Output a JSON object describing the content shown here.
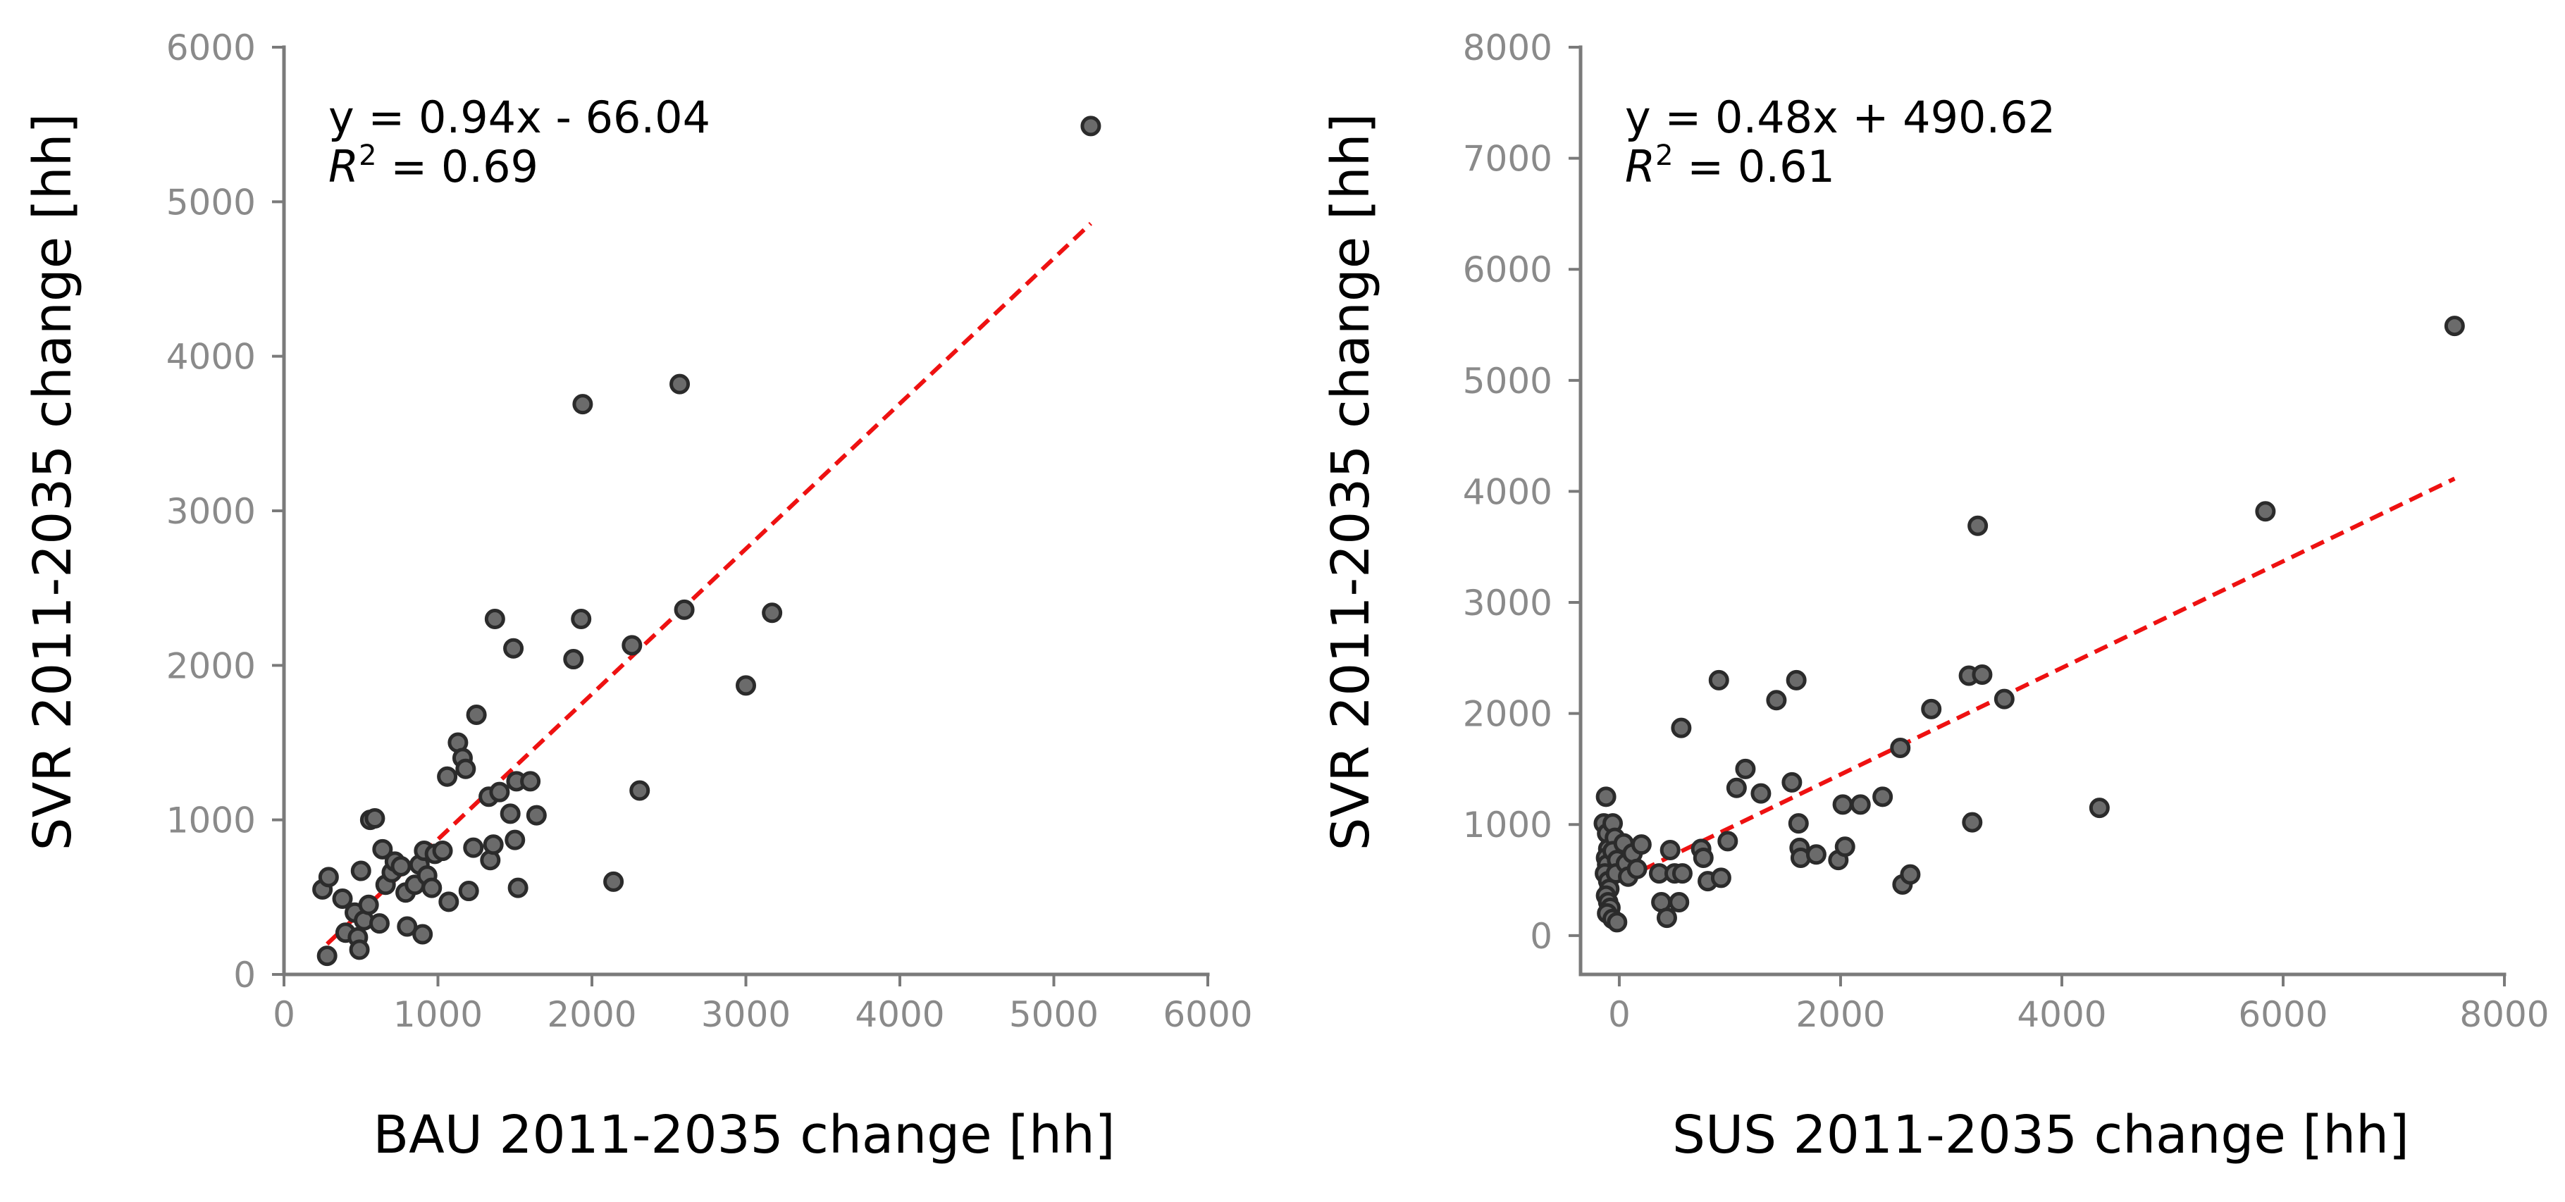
{
  "colors": {
    "axis": "#7a7a7a",
    "tick_label": "#8a8a8a",
    "point_fill": "#6b6b6b",
    "point_stroke": "#2b2b2b",
    "fit_line": "#ee1111",
    "text": "#000000"
  },
  "chart_data": [
    {
      "type": "scatter",
      "title": "",
      "xlabel": "BAU 2011-2035 change [hh]",
      "ylabel": "SVR 2011-2035 change [hh]",
      "xlim": [
        0,
        6000
      ],
      "ylim": [
        0,
        6000
      ],
      "xticks": [
        0,
        1000,
        2000,
        3000,
        4000,
        5000,
        6000
      ],
      "yticks": [
        0,
        1000,
        2000,
        3000,
        4000,
        5000,
        6000
      ],
      "xtick_labels": [
        "0",
        "1000",
        "2000",
        "3000",
        "4000",
        "5000",
        "6000"
      ],
      "ytick_labels": [
        "0",
        "1000",
        "2000",
        "3000",
        "4000",
        "5000",
        "6000"
      ],
      "equation_text": "y = 0.94x - 66.04",
      "r2_symbol": "R",
      "r2_exponent": "2",
      "r2_value_text": " = 0.69",
      "fit": {
        "slope": 0.94,
        "intercept": -66.04,
        "x_range": [
          280,
          5240
        ]
      },
      "points": [
        [
          280,
          120
        ],
        [
          250,
          550
        ],
        [
          290,
          630
        ],
        [
          380,
          490
        ],
        [
          400,
          270
        ],
        [
          460,
          400
        ],
        [
          480,
          240
        ],
        [
          490,
          160
        ],
        [
          500,
          670
        ],
        [
          520,
          350
        ],
        [
          550,
          450
        ],
        [
          560,
          1000
        ],
        [
          590,
          1010
        ],
        [
          620,
          330
        ],
        [
          640,
          810
        ],
        [
          660,
          580
        ],
        [
          700,
          660
        ],
        [
          720,
          730
        ],
        [
          760,
          700
        ],
        [
          790,
          530
        ],
        [
          800,
          310
        ],
        [
          850,
          580
        ],
        [
          880,
          710
        ],
        [
          900,
          260
        ],
        [
          910,
          800
        ],
        [
          930,
          640
        ],
        [
          960,
          560
        ],
        [
          980,
          780
        ],
        [
          1030,
          800
        ],
        [
          1060,
          1280
        ],
        [
          1070,
          470
        ],
        [
          1130,
          1500
        ],
        [
          1160,
          1400
        ],
        [
          1180,
          1330
        ],
        [
          1200,
          540
        ],
        [
          1230,
          820
        ],
        [
          1250,
          1680
        ],
        [
          1330,
          1150
        ],
        [
          1340,
          740
        ],
        [
          1360,
          840
        ],
        [
          1370,
          2300
        ],
        [
          1400,
          1180
        ],
        [
          1470,
          1040
        ],
        [
          1490,
          2110
        ],
        [
          1500,
          870
        ],
        [
          1510,
          1250
        ],
        [
          1520,
          560
        ],
        [
          1600,
          1250
        ],
        [
          1640,
          1030
        ],
        [
          1880,
          2040
        ],
        [
          1930,
          2300
        ],
        [
          1940,
          3690
        ],
        [
          2140,
          600
        ],
        [
          2260,
          2130
        ],
        [
          2310,
          1190
        ],
        [
          2570,
          3820
        ],
        [
          2600,
          2360
        ],
        [
          3000,
          1870
        ],
        [
          3170,
          2340
        ],
        [
          5240,
          5490
        ]
      ]
    },
    {
      "type": "scatter",
      "title": "",
      "xlabel": "SUS 2011-2035 change [hh]",
      "ylabel": "SVR 2011-2035 change [hh]",
      "xlim": [
        -350,
        8000
      ],
      "ylim": [
        -350,
        8000
      ],
      "xticks": [
        0,
        2000,
        4000,
        6000,
        8000
      ],
      "yticks": [
        0,
        1000,
        2000,
        3000,
        4000,
        5000,
        6000,
        7000,
        8000
      ],
      "xtick_labels": [
        "0",
        "2000",
        "4000",
        "6000",
        "8000"
      ],
      "ytick_labels": [
        "0",
        "1000",
        "2000",
        "3000",
        "4000",
        "5000",
        "6000",
        "7000",
        "8000"
      ],
      "equation_text": "y = 0.48x + 490.62",
      "r2_symbol": "R",
      "r2_exponent": "2",
      "r2_value_text": " = 0.61",
      "fit": {
        "slope": 0.48,
        "intercept": 490.62,
        "x_range": [
          -150,
          7550
        ]
      },
      "points": [
        [
          -140,
          1010
        ],
        [
          -120,
          1250
        ],
        [
          -110,
          920
        ],
        [
          -100,
          780
        ],
        [
          -120,
          700
        ],
        [
          -110,
          640
        ],
        [
          -130,
          560
        ],
        [
          -100,
          490
        ],
        [
          -90,
          420
        ],
        [
          -120,
          360
        ],
        [
          -100,
          300
        ],
        [
          -80,
          250
        ],
        [
          -110,
          200
        ],
        [
          -60,
          1010
        ],
        [
          -40,
          880
        ],
        [
          -60,
          760
        ],
        [
          -20,
          680
        ],
        [
          -30,
          560
        ],
        [
          -60,
          150
        ],
        [
          -20,
          120
        ],
        [
          40,
          830
        ],
        [
          60,
          650
        ],
        [
          80,
          530
        ],
        [
          120,
          740
        ],
        [
          160,
          600
        ],
        [
          200,
          820
        ],
        [
          360,
          560
        ],
        [
          380,
          300
        ],
        [
          430,
          160
        ],
        [
          460,
          770
        ],
        [
          500,
          560
        ],
        [
          540,
          300
        ],
        [
          560,
          1870
        ],
        [
          570,
          560
        ],
        [
          740,
          780
        ],
        [
          760,
          700
        ],
        [
          800,
          490
        ],
        [
          900,
          2300
        ],
        [
          920,
          520
        ],
        [
          980,
          850
        ],
        [
          1060,
          1330
        ],
        [
          1140,
          1500
        ],
        [
          1280,
          1280
        ],
        [
          1420,
          2120
        ],
        [
          1560,
          1380
        ],
        [
          1600,
          2300
        ],
        [
          1620,
          1010
        ],
        [
          1630,
          790
        ],
        [
          1640,
          700
        ],
        [
          1780,
          730
        ],
        [
          1980,
          680
        ],
        [
          2020,
          1180
        ],
        [
          2040,
          800
        ],
        [
          2180,
          1180
        ],
        [
          2380,
          1250
        ],
        [
          2540,
          1690
        ],
        [
          2560,
          460
        ],
        [
          2630,
          550
        ],
        [
          2820,
          2040
        ],
        [
          3160,
          2340
        ],
        [
          3190,
          1020
        ],
        [
          3240,
          3690
        ],
        [
          3280,
          2350
        ],
        [
          3480,
          2130
        ],
        [
          4340,
          1150
        ],
        [
          5840,
          3820
        ],
        [
          7550,
          5490
        ]
      ]
    }
  ]
}
